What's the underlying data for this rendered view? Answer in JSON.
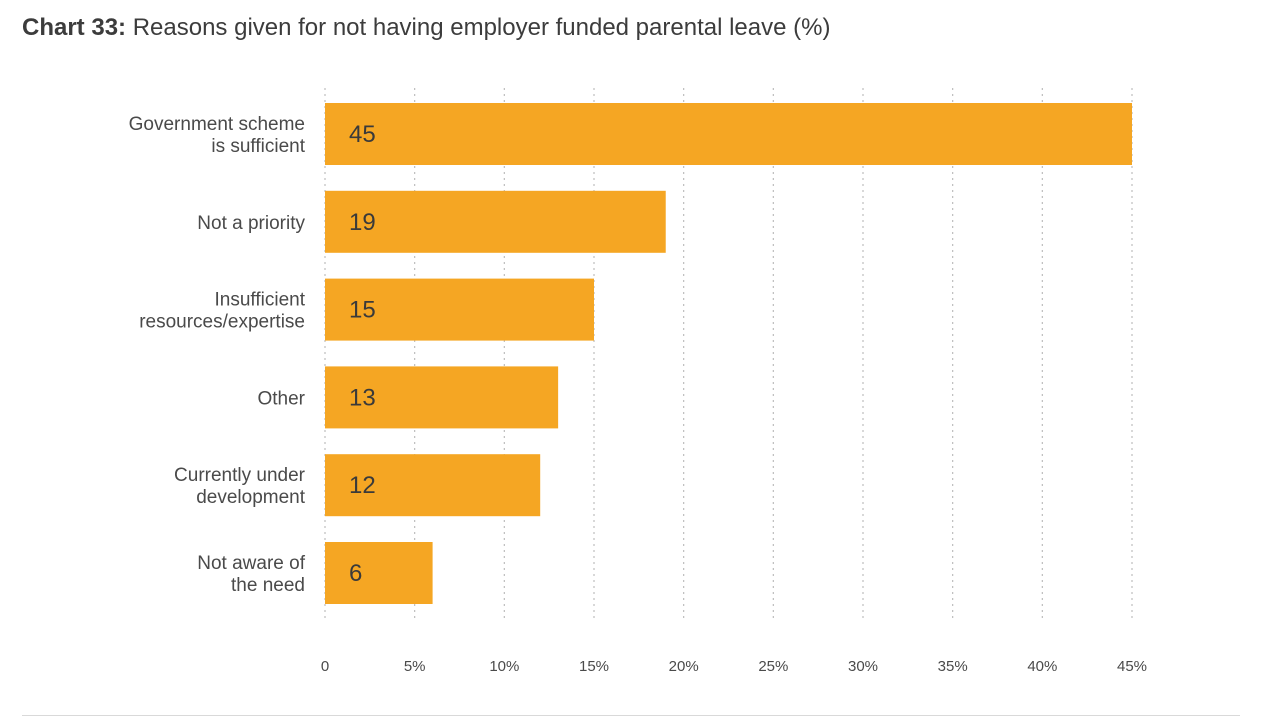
{
  "title_prefix": "Chart 33:",
  "title_text": "Reasons given for not having employer funded parental leave (%)",
  "colors": {
    "bar": "#F5A623",
    "grid": "#bdbdbd",
    "text": "#4a4a4a",
    "value_text": "#3a3a3a"
  },
  "chart_data": {
    "type": "bar",
    "orientation": "horizontal",
    "title": "Reasons given for not having employer funded parental leave (%)",
    "categories": [
      [
        "Government scheme",
        "is sufficient"
      ],
      [
        "Not a priority"
      ],
      [
        "Insufficient",
        "resources/expertise"
      ],
      [
        "Other"
      ],
      [
        "Currently under",
        "development"
      ],
      [
        "Not aware of",
        "the need"
      ]
    ],
    "values": [
      45,
      19,
      15,
      13,
      12,
      6
    ],
    "data_labels": [
      "45",
      "19",
      "15",
      "13",
      "12",
      "6"
    ],
    "xlim": [
      0,
      45
    ],
    "x_ticks": [
      0,
      5,
      10,
      15,
      20,
      25,
      30,
      35,
      40,
      45
    ],
    "x_tick_labels": [
      "0",
      "5%",
      "10%",
      "15%",
      "20%",
      "25%",
      "30%",
      "35%",
      "40%",
      "45%"
    ],
    "grid": "vertical-dotted",
    "legend": "none"
  }
}
